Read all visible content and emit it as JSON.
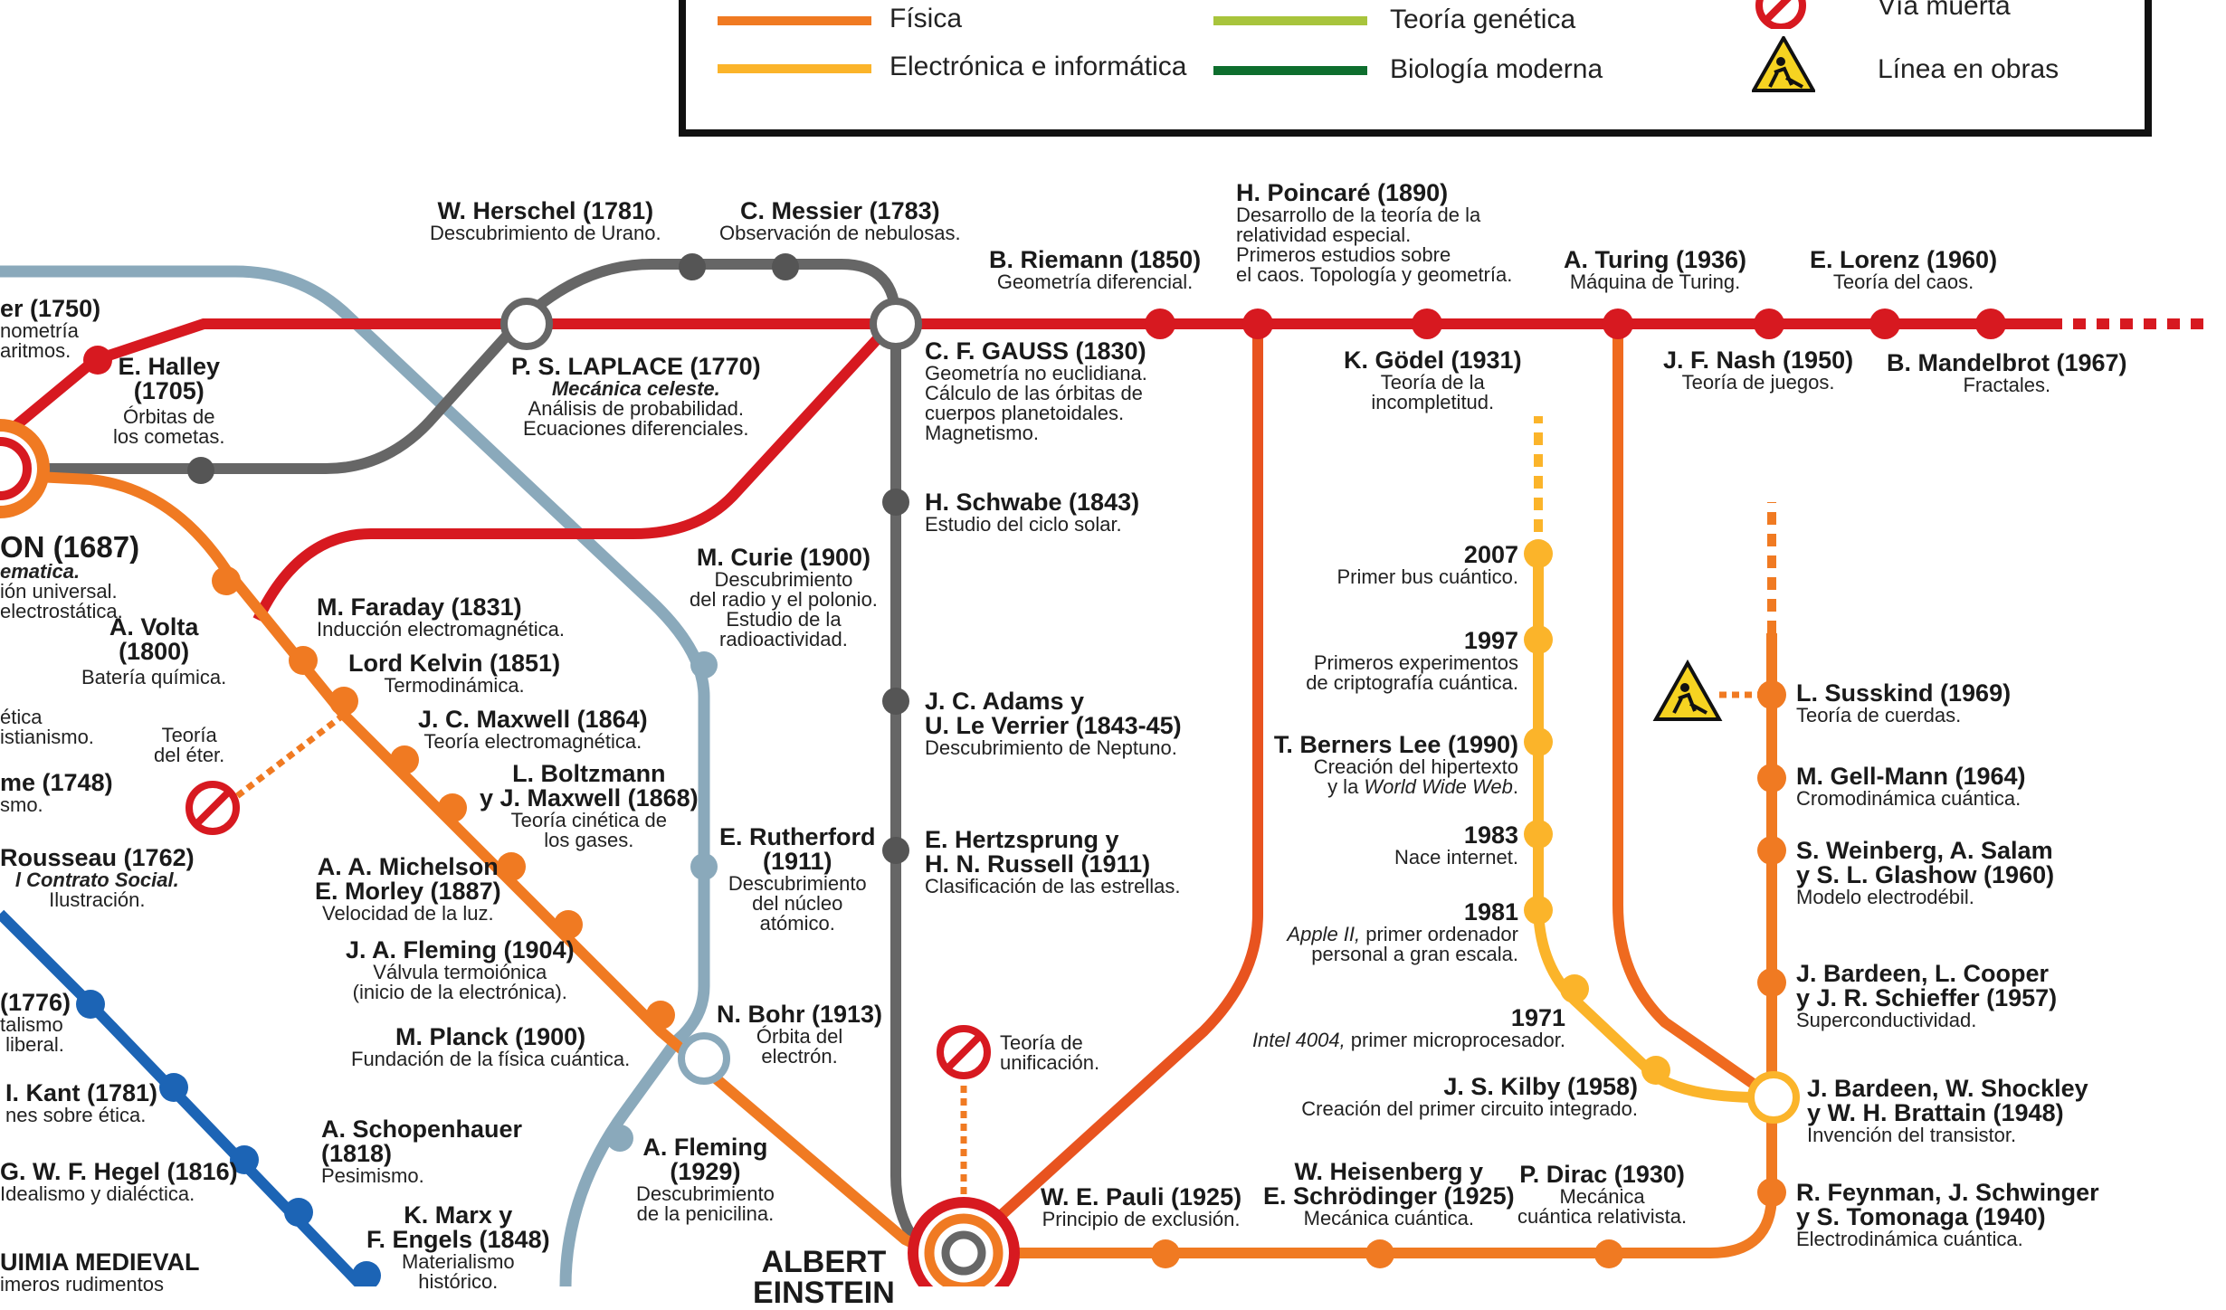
{
  "legend": {
    "fisica": "Física",
    "electronica": "Electrónica e informática",
    "genetica": "Teoría genética",
    "biologia": "Biología moderna",
    "via_muerta": "Vía muerta",
    "obras": "Línea en obras"
  },
  "colors": {
    "red": "#d71920",
    "orange": "#f07a22",
    "yellow": "#fbb42a",
    "grey": "#666666",
    "blue": "#1c64b5",
    "lightblue": "#8aa9bb",
    "genetica": "#a8c43c",
    "biologia": "#0e6e2e"
  },
  "stations": {
    "euler": {
      "title": "er (1750)",
      "desc": "nometría\naritmos."
    },
    "halley": {
      "title": "E. Halley\n(1705)",
      "desc": "Órbitas de\nlos cometas."
    },
    "herschel": {
      "title": "W. Herschel (1781)",
      "desc": "Descubrimiento de Urano."
    },
    "messier": {
      "title": "C. Messier (1783)",
      "desc": "Observación de nebulosas."
    },
    "laplace": {
      "title": "P. S. LAPLACE (1770)",
      "desc_italic": "Mecánica celeste.",
      "desc": "Análisis de probabilidad.\nEcuaciones diferenciales."
    },
    "riemann": {
      "title": "B. Riemann (1850)",
      "desc": "Geometría diferencial."
    },
    "poincare": {
      "title": "H. Poincaré (1890)",
      "desc": "Desarrollo de la teoría de la\nrelatividad especial.\nPrimeros estudios sobre\nel caos. Topología y geometría."
    },
    "turing": {
      "title": "A. Turing (1936)",
      "desc": "Máquina de Turing."
    },
    "lorenz": {
      "title": "E. Lorenz (1960)",
      "desc": "Teoría del caos."
    },
    "gauss": {
      "title": "C. F. GAUSS (1830)",
      "desc": "Geometría no euclidiana.\nCálculo de las órbitas de\ncuerpos planetoidales.\nMagnetismo."
    },
    "godel": {
      "title": "K. Gödel (1931)",
      "desc": "Teoría de la\nincompletitud."
    },
    "nash": {
      "title": "J. F. Nash (1950)",
      "desc": "Teoría de juegos."
    },
    "mandelbrot": {
      "title": "B. Mandelbrot (1967)",
      "desc": "Fractales."
    },
    "newton": {
      "title": "ON (1687)",
      "desc_italic": "ematica.",
      "desc": "ión universal.\nelectrostática."
    },
    "schwabe": {
      "title": "H. Schwabe (1843)",
      "desc": "Estudio del ciclo solar."
    },
    "curie": {
      "title": "M. Curie (1900)",
      "desc": "Descubrimiento\ndel radio y el polonio.\nEstudio de la\nradioactividad."
    },
    "faraday": {
      "title": "M. Faraday (1831)",
      "desc": "Inducción electromagnética."
    },
    "volta": {
      "title": "A. Volta\n(1800)",
      "desc": "Batería química."
    },
    "kelvin": {
      "title": "Lord Kelvin (1851)",
      "desc": "Termodinámica."
    },
    "maxwell": {
      "title": "J. C. Maxwell (1864)",
      "desc": "Teoría electromagnética."
    },
    "boltzmann": {
      "title": "L. Boltzmann\ny J. Maxwell (1868)",
      "desc": "Teoría cinética de\nlos gases."
    },
    "eter": {
      "title": "Teoría\ndel éter."
    },
    "etica_frag": {
      "desc": "ética\nistianismo."
    },
    "hume": {
      "title": "me (1748)",
      "desc": "smo."
    },
    "adams": {
      "title": "J. C. Adams y\nU. Le Verrier (1843-45)",
      "desc": "Descubrimiento de Neptuno."
    },
    "rousseau": {
      "title": "Rousseau (1762)",
      "desc_italic": "l Contrato Social.",
      "desc": "Ilustración."
    },
    "michelson": {
      "title": "A. A. Michelson\nE. Morley (1887)",
      "desc": "Velocidad de la luz."
    },
    "rutherford": {
      "title": "E. Rutherford\n(1911)",
      "desc": "Descubrimiento\ndel núcleo\natómico."
    },
    "hertzsprung": {
      "title": "E. Hertzsprung y\nH. N. Russell (1911)",
      "desc": "Clasificación de las estrellas."
    },
    "fleming_ja": {
      "title": "J. A. Fleming (1904)",
      "desc": "Válvula termoiónica\n(inicio de la electrónica)."
    },
    "smith": {
      "title": "(1776)",
      "desc": "talismo\n liberal."
    },
    "planck": {
      "title": "M. Planck (1900)",
      "desc": "Fundación de la física cuántica."
    },
    "bohr": {
      "title": "N. Bohr (1913)",
      "desc": "Órbita del\nelectrón."
    },
    "unificacion": {
      "title": "Teoría de\nunificación."
    },
    "kant": {
      "title": "I. Kant (1781)",
      "desc": "nes sobre ética."
    },
    "schopenhauer": {
      "title": "A. Schopenhauer\n(1818)",
      "desc": "Pesimismo."
    },
    "fleming_a": {
      "title": "A. Fleming\n(1929)",
      "desc": "Descubrimiento\nde la penicilina."
    },
    "hegel": {
      "title": "G. W. F. Hegel (1816)",
      "desc": "Idealismo y dialéctica."
    },
    "marx": {
      "title": "K. Marx y\nF. Engels (1848)",
      "desc": "Materialismo\nhistórico."
    },
    "quimia": {
      "title": "UIMIA MEDIEVAL",
      "desc": "imeros rudimentos"
    },
    "einstein": {
      "title": "ALBERT\nEINSTEIN"
    },
    "pauli": {
      "title": "W. E. Pauli (1925)",
      "desc": "Principio de exclusión."
    },
    "heisenberg": {
      "title": "W. Heisenberg y\nE. Schrödinger (1925)",
      "desc": "Mecánica cuántica."
    },
    "dirac": {
      "title": "P. Dirac (1930)",
      "desc": "Mecánica\ncuántica relativista."
    },
    "s2007": {
      "title": "2007",
      "desc": "Primer bus cuántico."
    },
    "s1997": {
      "title": "1997",
      "desc": "Primeros experimentos\nde criptografía cuántica."
    },
    "berners": {
      "title": "T. Berners Lee (1990)",
      "desc": "Creación del hipertexto\ny la ",
      "desc_italic": "World Wide Web",
      "desc_end": "."
    },
    "s1983": {
      "title": "1983",
      "desc": "Nace internet."
    },
    "s1981": {
      "title": "1981",
      "desc_italic": "Apple II,",
      "desc": " primer ordenador\npersonal a gran escala."
    },
    "s1971": {
      "title": "1971",
      "desc_italic": "Intel 4004,",
      "desc": " primer microprocesador."
    },
    "kilby": {
      "title": "J. S. Kilby (1958)",
      "desc": "Creación del primer circuito integrado."
    },
    "susskind": {
      "title": "L. Susskind (1969)",
      "desc": "Teoría de cuerdas."
    },
    "gellmann": {
      "title": "M. Gell-Mann (1964)",
      "desc": "Cromodinámica cuántica."
    },
    "weinberg": {
      "title": "S. Weinberg, A. Salam\ny S. L. Glashow (1960)",
      "desc": "Modelo electrodébil."
    },
    "bcs": {
      "title": "J. Bardeen, L. Cooper\ny J. R. Schieffer (1957)",
      "desc": "Superconductividad."
    },
    "transistor": {
      "title": "J. Bardeen, W. Shockley\ny W. H. Brattain (1948)",
      "desc": "Invención del transistor."
    },
    "feynman": {
      "title": "R. Feynman, J. Schwinger\ny S. Tomonaga (1940)",
      "desc": "Electrodinámica cuántica."
    }
  }
}
